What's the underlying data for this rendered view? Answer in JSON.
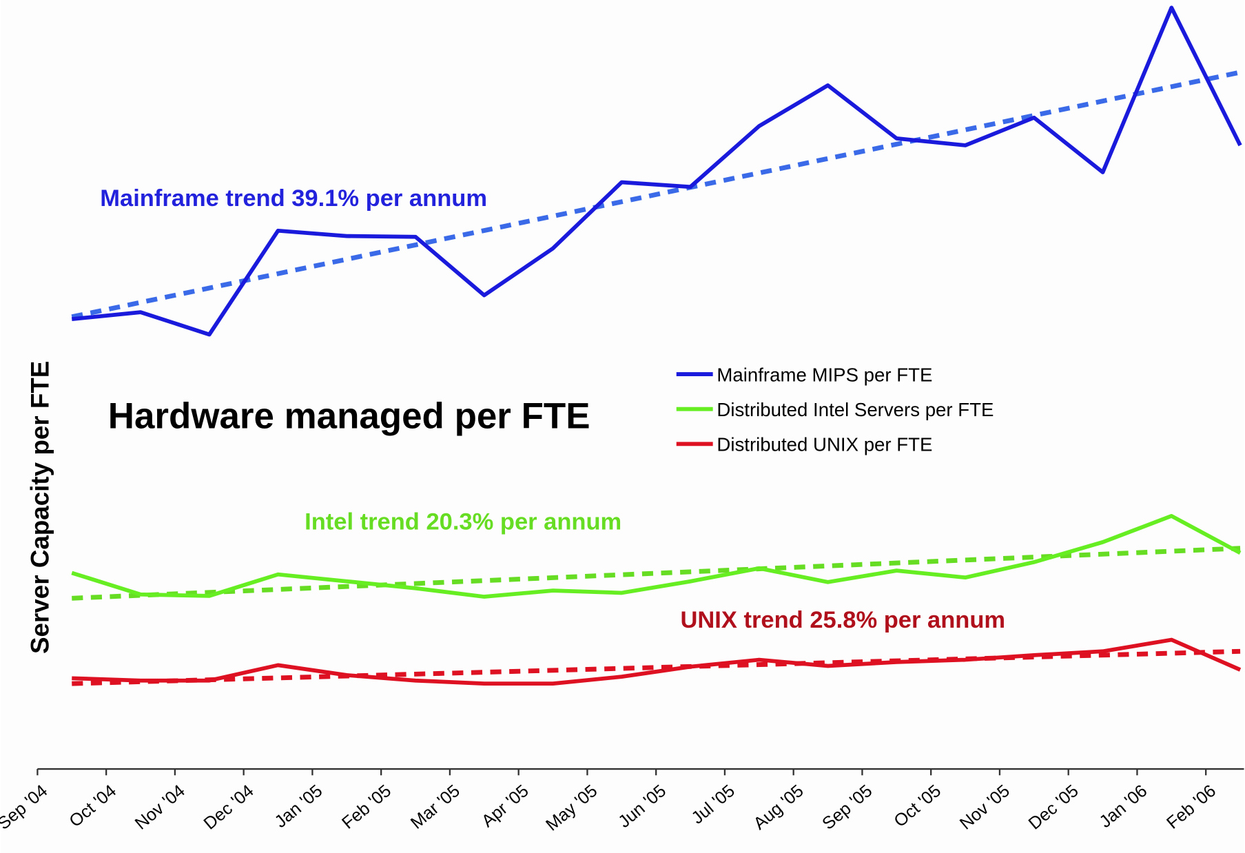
{
  "chart_data": {
    "type": "line",
    "title": "Hardware managed per FTE",
    "y_label": "Server Capacity per FTE",
    "categories": [
      "Sep '04",
      "Oct '04",
      "Nov '04",
      "Dec '04",
      "Jan '05",
      "Feb '05",
      "Mar '05",
      "Apr '05",
      "May '05",
      "Jun '05",
      "Jul '05",
      "Aug '05",
      "Sep '05",
      "Oct '05",
      "Nov '05",
      "Dec '05",
      "Jan '06",
      "Feb '06"
    ],
    "ylim": [
      0,
      100
    ],
    "series": [
      {
        "name": "Mainframe MIPS per FTE",
        "color": "#1a1adc",
        "trend_color": "#3a6ae8",
        "values": [
          58.5,
          59.4,
          56.5,
          70.0,
          69.3,
          69.2,
          61.6,
          67.7,
          76.3,
          75.7,
          83.6,
          88.9,
          82.0,
          81.1,
          84.7,
          77.6,
          99.0,
          81.1
        ],
        "trend": [
          58.8,
          90.6
        ]
      },
      {
        "name": "Distributed Intel Servers per FTE",
        "color": "#66ee22",
        "trend_color": "#66dd22",
        "values": [
          25.5,
          22.7,
          22.5,
          25.3,
          24.4,
          23.5,
          22.4,
          23.2,
          22.9,
          24.4,
          26.1,
          24.3,
          25.8,
          24.9,
          26.9,
          29.5,
          32.9,
          28.1
        ],
        "trend": [
          22.2,
          28.7
        ]
      },
      {
        "name": "Distributed UNIX per FTE",
        "color": "#dd1122",
        "trend_color": "#dd1122",
        "values": [
          11.8,
          11.5,
          11.5,
          13.5,
          12.2,
          11.5,
          11.1,
          11.1,
          12.0,
          13.3,
          14.2,
          13.4,
          13.9,
          14.2,
          14.8,
          15.3,
          16.8,
          12.9
        ],
        "trend": [
          11.1,
          15.3
        ]
      }
    ],
    "annotations": [
      {
        "text": "Mainframe trend 39.1% per annum",
        "color": "#2222dd"
      },
      {
        "text": "Intel trend 20.3% per annum",
        "color": "#66dd22"
      },
      {
        "text": "UNIX trend 25.8% per annum",
        "color": "#b0101c"
      }
    ]
  }
}
